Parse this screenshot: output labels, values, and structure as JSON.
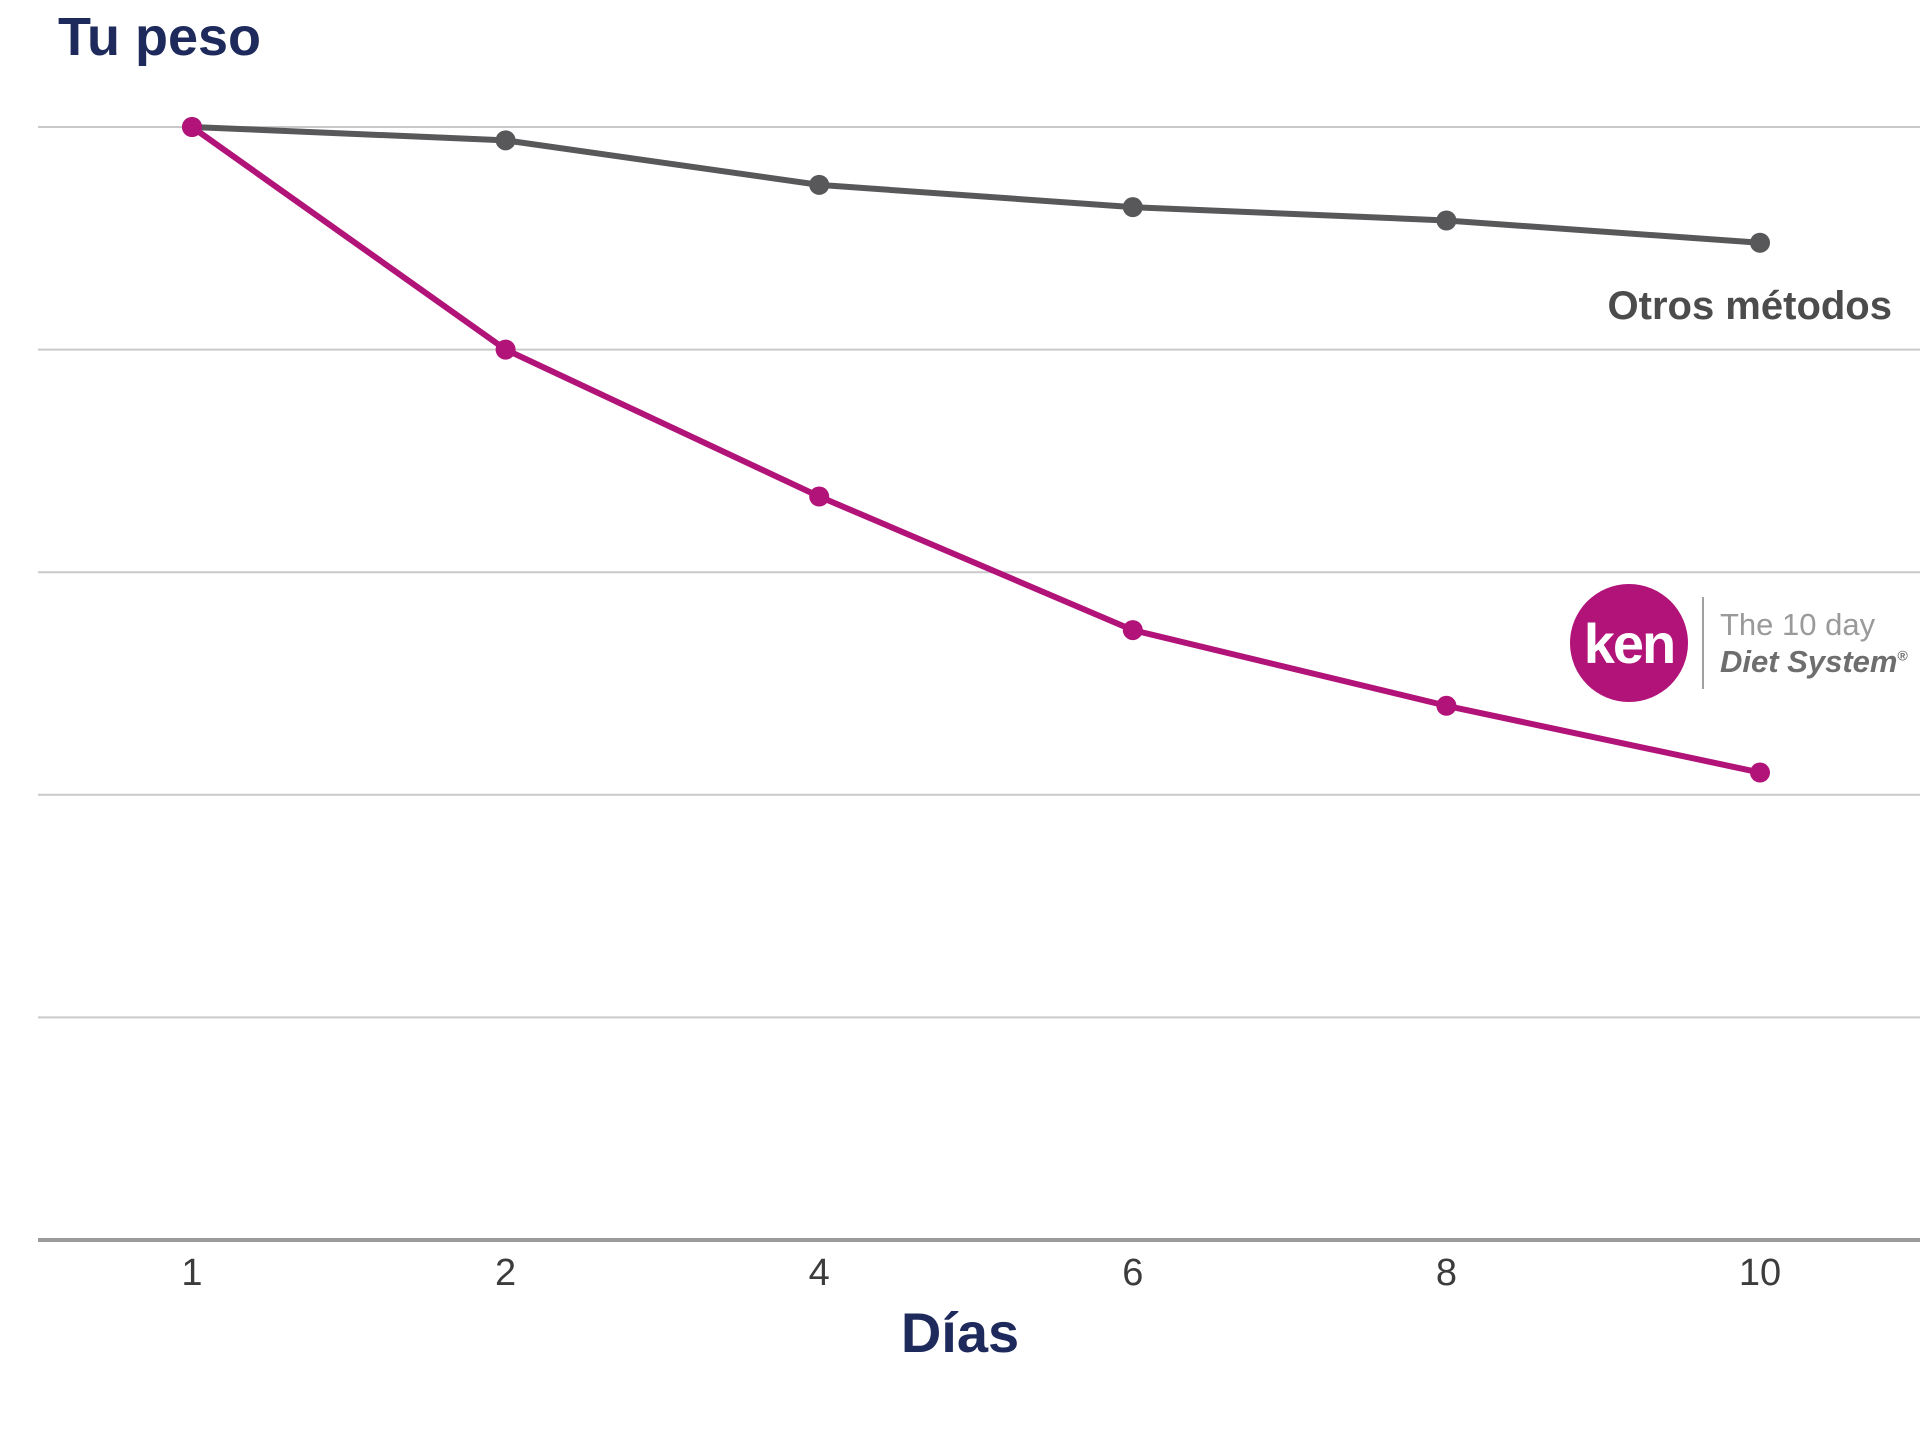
{
  "title": {
    "text": "Tu peso"
  },
  "labels": {
    "otros": "Otros métodos",
    "x_axis": "Días"
  },
  "logo": {
    "brand": "ken",
    "line1": "The 10 day",
    "line2": "Diet System",
    "registered": "®"
  },
  "colors": {
    "title": "#1e2a5c",
    "axis_title": "#1e2a5c",
    "gridline": "#c9c9c9",
    "axis_line": "#9b9b9b",
    "tick_text": "#3c3c3c",
    "otros_text": "#4c4c4c",
    "ken_magenta": "#b11378",
    "otros_gray": "#58585a"
  },
  "chart_data": {
    "type": "line",
    "title": "Tu peso",
    "xlabel": "Días",
    "ylabel": "",
    "categories": [
      "1",
      "2",
      "4",
      "6",
      "8",
      "10"
    ],
    "series": [
      {
        "name": "Otros métodos",
        "color": "#58585a",
        "values": [
          100,
          99.7,
          98.7,
          98.2,
          97.9,
          97.4
        ]
      },
      {
        "name": "Ken — The 10 day Diet System",
        "color": "#b11378",
        "values": [
          100,
          95,
          91.7,
          88.7,
          87,
          85.5
        ]
      }
    ],
    "ylim": [
      75,
      100
    ],
    "y_gridlines": [
      100,
      95,
      90,
      85,
      80
    ],
    "y_tick_labels": "none",
    "grid": "horizontal",
    "legend_position": "inline-right-of-lines"
  }
}
